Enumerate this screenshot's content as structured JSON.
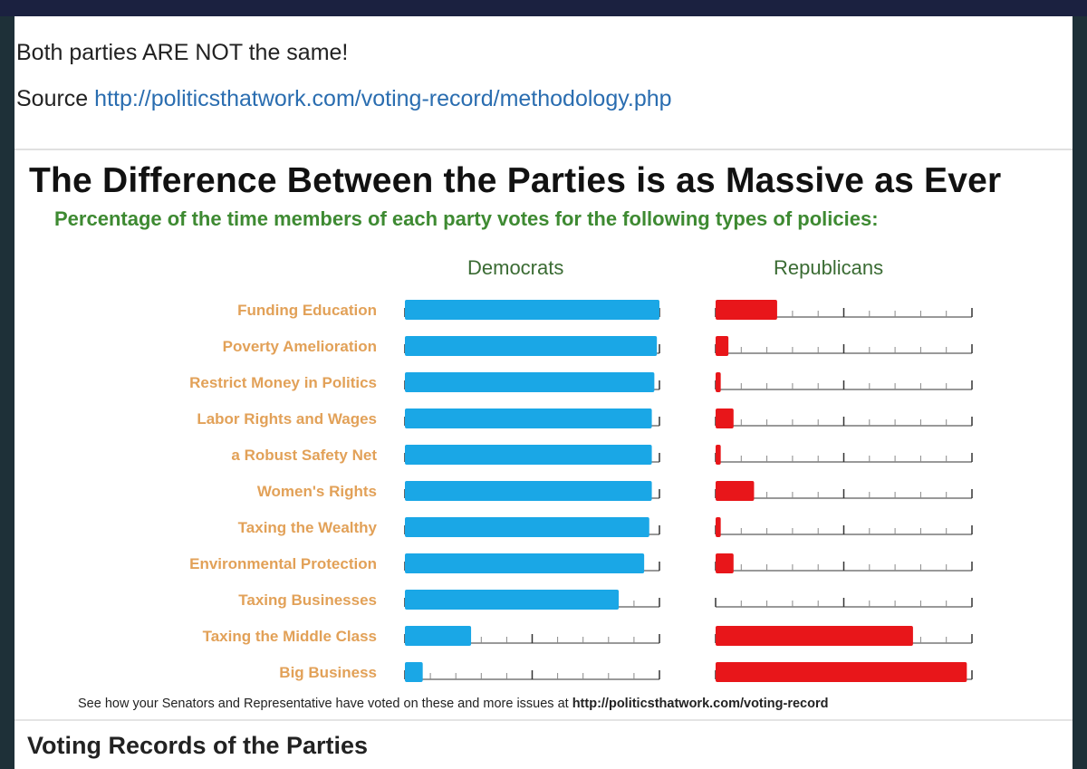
{
  "post": {
    "line1": "Both parties ARE NOT the same!",
    "source_label": "Source",
    "source_url": "http://politicsthatwork.com/voting-record/methodology.php"
  },
  "chart_data": {
    "type": "bar",
    "title": "The Difference Between the Parties is as Massive as Ever",
    "subtitle": "Percentage of the time members of each party votes for the following types of policies:",
    "categories": [
      "Funding Education",
      "Poverty Amelioration",
      "Restrict Money in Politics",
      "Labor Rights and Wages",
      "a Robust Safety Net",
      "Women's Rights",
      "Taxing the Wealthy",
      "Environmental Protection",
      "Taxing Businesses",
      "Taxing the Middle Class",
      "Big Business"
    ],
    "series": [
      {
        "name": "Democrats",
        "color": "#1aa7e6",
        "values": [
          100,
          99,
          98,
          97,
          97,
          97,
          96,
          94,
          84,
          26,
          7
        ]
      },
      {
        "name": "Republicans",
        "color": "#e8161a",
        "values": [
          24,
          5,
          2,
          7,
          2,
          15,
          2,
          7,
          0,
          77,
          98
        ]
      }
    ],
    "ylim": [
      0,
      100
    ],
    "grid": false,
    "footer_text": "See how your Senators and Representative have voted on these and more issues at",
    "footer_url": "http://politicsthatwork.com/voting-record"
  },
  "section": {
    "heading": "Voting Records of the Parties"
  }
}
